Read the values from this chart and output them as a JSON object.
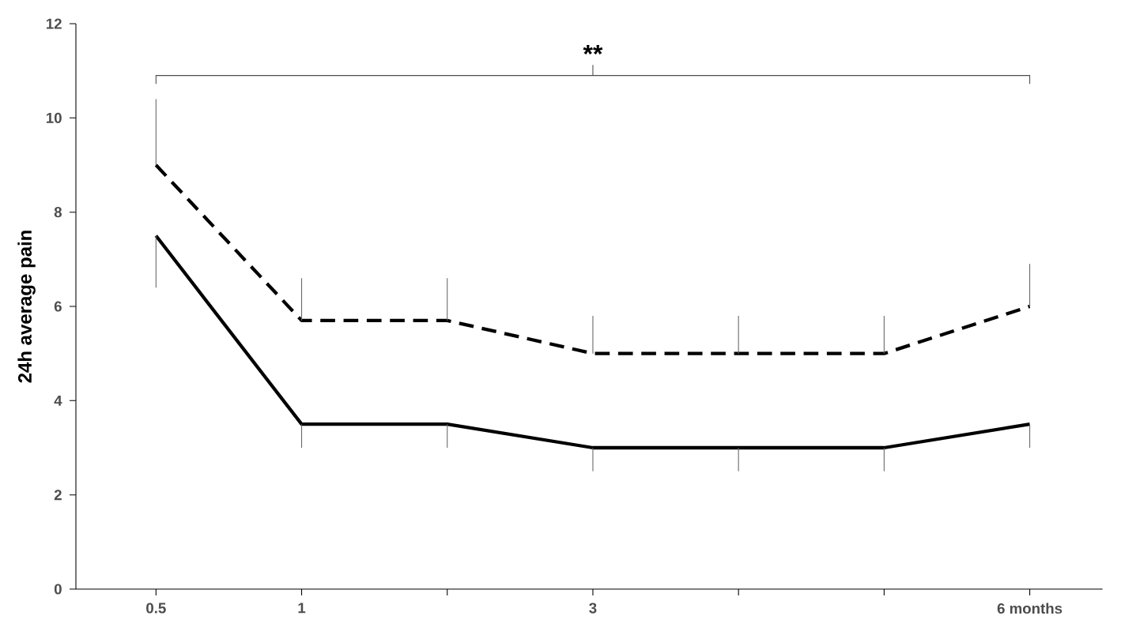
{
  "chart_data": {
    "type": "line",
    "ylabel": "24h average pain",
    "categories": [
      "0.5",
      "1",
      null,
      "3",
      null,
      null,
      "6 months"
    ],
    "series": [
      {
        "color": "#000000",
        "line_style": "dashed",
        "values": [
          9.0,
          5.7,
          5.7,
          5.0,
          5.0,
          5.0,
          6.0
        ],
        "errors": [
          [
            9.0,
            10.4
          ],
          [
            5.7,
            6.6
          ],
          [
            5.7,
            6.6
          ],
          [
            5.0,
            5.8
          ],
          [
            5.0,
            5.8
          ],
          [
            5.0,
            5.8
          ],
          [
            6.0,
            6.9
          ]
        ]
      },
      {
        "color": "#000000",
        "line_style": "solid",
        "values": [
          7.5,
          3.5,
          3.5,
          3.0,
          3.0,
          3.0,
          3.5
        ],
        "errors": [
          [
            6.4,
            7.5
          ],
          [
            3.0,
            3.5
          ],
          [
            3.0,
            3.5
          ],
          [
            2.5,
            3.0
          ],
          [
            2.5,
            3.0
          ],
          [
            2.5,
            3.0
          ],
          [
            3.0,
            3.5
          ]
        ]
      }
    ],
    "ylim": [
      0,
      12
    ],
    "yticks": [
      0,
      2,
      4,
      6,
      8,
      10,
      12
    ],
    "annotations": [
      "**"
    ],
    "grid": false,
    "marker": "none"
  }
}
